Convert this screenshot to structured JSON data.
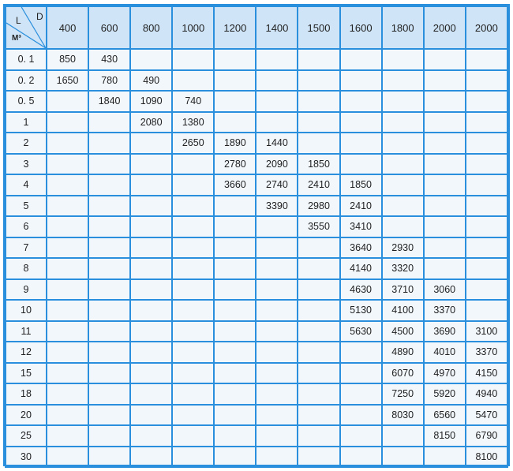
{
  "table": {
    "corner": {
      "row_label": "L",
      "col_label": "D",
      "unit": "M³"
    },
    "headers": [
      "400",
      "600",
      "800",
      "1000",
      "1200",
      "1400",
      "1500",
      "1600",
      "1800",
      "2000",
      "2000"
    ],
    "rows": [
      {
        "label": "0. 1",
        "values": [
          "850",
          "430",
          "",
          "",
          "",
          "",
          "",
          "",
          "",
          "",
          ""
        ]
      },
      {
        "label": "0. 2",
        "values": [
          "1650",
          "780",
          "490",
          "",
          "",
          "",
          "",
          "",
          "",
          "",
          ""
        ]
      },
      {
        "label": "0. 5",
        "values": [
          "",
          "1840",
          "1090",
          "740",
          "",
          "",
          "",
          "",
          "",
          "",
          ""
        ]
      },
      {
        "label": "1",
        "values": [
          "",
          "",
          "2080",
          "1380",
          "",
          "",
          "",
          "",
          "",
          "",
          ""
        ]
      },
      {
        "label": "2",
        "values": [
          "",
          "",
          "",
          "2650",
          "1890",
          "1440",
          "",
          "",
          "",
          "",
          ""
        ]
      },
      {
        "label": "3",
        "values": [
          "",
          "",
          "",
          "",
          "2780",
          "2090",
          "1850",
          "",
          "",
          "",
          ""
        ]
      },
      {
        "label": "4",
        "values": [
          "",
          "",
          "",
          "",
          "3660",
          "2740",
          "2410",
          "1850",
          "",
          "",
          ""
        ]
      },
      {
        "label": "5",
        "values": [
          "",
          "",
          "",
          "",
          "",
          "3390",
          "2980",
          "2410",
          "",
          "",
          ""
        ]
      },
      {
        "label": "6",
        "values": [
          "",
          "",
          "",
          "",
          "",
          "",
          "3550",
          "3410",
          "",
          "",
          ""
        ]
      },
      {
        "label": "7",
        "values": [
          "",
          "",
          "",
          "",
          "",
          "",
          "",
          "3640",
          "2930",
          "",
          ""
        ]
      },
      {
        "label": "8",
        "values": [
          "",
          "",
          "",
          "",
          "",
          "",
          "",
          "4140",
          "3320",
          "",
          ""
        ]
      },
      {
        "label": "9",
        "values": [
          "",
          "",
          "",
          "",
          "",
          "",
          "",
          "4630",
          "3710",
          "3060",
          ""
        ]
      },
      {
        "label": "10",
        "values": [
          "",
          "",
          "",
          "",
          "",
          "",
          "",
          "5130",
          "4100",
          "3370",
          ""
        ]
      },
      {
        "label": "11",
        "values": [
          "",
          "",
          "",
          "",
          "",
          "",
          "",
          "5630",
          "4500",
          "3690",
          "3100"
        ]
      },
      {
        "label": "12",
        "values": [
          "",
          "",
          "",
          "",
          "",
          "",
          "",
          "",
          "4890",
          "4010",
          "3370"
        ]
      },
      {
        "label": "15",
        "values": [
          "",
          "",
          "",
          "",
          "",
          "",
          "",
          "",
          "6070",
          "4970",
          "4150"
        ]
      },
      {
        "label": "18",
        "values": [
          "",
          "",
          "",
          "",
          "",
          "",
          "",
          "",
          "7250",
          "5920",
          "4940"
        ]
      },
      {
        "label": "20",
        "values": [
          "",
          "",
          "",
          "",
          "",
          "",
          "",
          "",
          "8030",
          "6560",
          "5470"
        ]
      },
      {
        "label": "25",
        "values": [
          "",
          "",
          "",
          "",
          "",
          "",
          "",
          "",
          "",
          "8150",
          "6790"
        ]
      },
      {
        "label": "30",
        "values": [
          "",
          "",
          "",
          "",
          "",
          "",
          "",
          "",
          "",
          "",
          "8100"
        ]
      }
    ]
  },
  "colors": {
    "grid": "#2a8fdc",
    "header_bg": "#cfe4f7",
    "cell_bg": "#f2f7fc"
  }
}
